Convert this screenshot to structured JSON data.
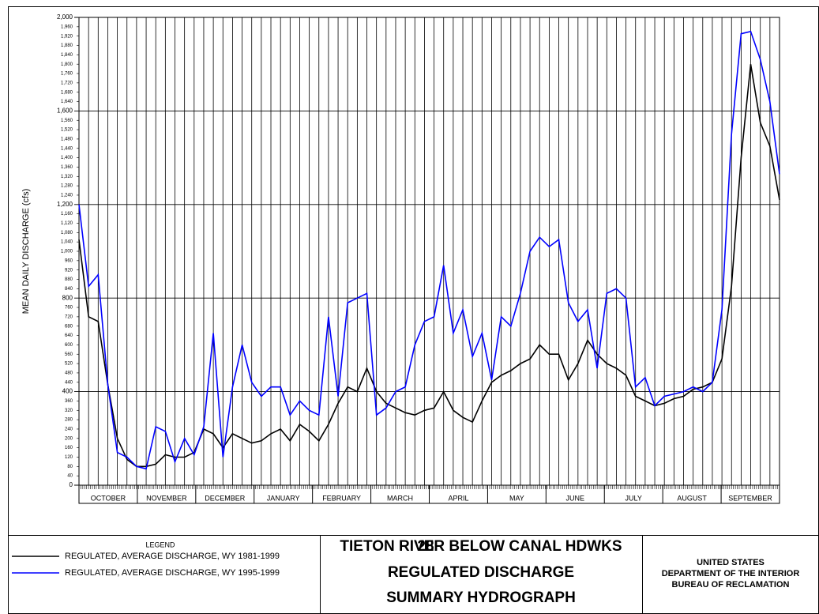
{
  "chart_data": {
    "type": "line",
    "title_lines": [
      "TIETON RIVER BELOW CANAL HDWKS",
      "REGULATED DISCHARGE",
      "SUMMARY HYDROGRAPH"
    ],
    "station_number": "28",
    "agency_lines": [
      "UNITED STATES",
      "DEPARTMENT OF THE INTERIOR",
      "BUREAU OF RECLAMATION"
    ],
    "legend_title": "LEGEND",
    "y_label": "MEAN DAILY DISCHARGE  (cfs)",
    "months": [
      "OCTOBER",
      "NOVEMBER",
      "DECEMBER",
      "JANUARY",
      "FEBRUARY",
      "MARCH",
      "APRIL",
      "MAY",
      "JUNE",
      "JULY",
      "AUGUST",
      "SEPTEMBER"
    ],
    "ylim": [
      0,
      2000
    ],
    "yticks": [
      0,
      40,
      80,
      120,
      160,
      200,
      240,
      280,
      320,
      360,
      400,
      440,
      480,
      520,
      560,
      600,
      640,
      680,
      720,
      760,
      800,
      840,
      880,
      920,
      960,
      {
        "value": 1000,
        "label": "1,000"
      },
      {
        "value": 1040,
        "label": "1,040"
      },
      {
        "value": 1080,
        "label": "1,080"
      },
      {
        "value": 1120,
        "label": "1,120"
      },
      {
        "value": 1160,
        "label": "1,160"
      },
      {
        "value": 1200,
        "label": "1,200"
      },
      {
        "value": 1240,
        "label": "1,240"
      },
      {
        "value": 1280,
        "label": "1,280"
      },
      {
        "value": 1320,
        "label": "1,320"
      },
      {
        "value": 1360,
        "label": "1,360"
      },
      {
        "value": 1400,
        "label": "1,400"
      },
      {
        "value": 1440,
        "label": "1,440"
      },
      {
        "value": 1480,
        "label": "1,480"
      },
      {
        "value": 1520,
        "label": "1,520"
      },
      {
        "value": 1560,
        "label": "1,560"
      },
      {
        "value": 1600,
        "label": "1,600"
      },
      {
        "value": 1640,
        "label": "1,640"
      },
      {
        "value": 1680,
        "label": "1,680"
      },
      {
        "value": 1720,
        "label": "1,720"
      },
      {
        "value": 1760,
        "label": "1,760"
      },
      {
        "value": 1800,
        "label": "1,800"
      },
      {
        "value": 1840,
        "label": "1,840"
      },
      {
        "value": 1880,
        "label": "1,880"
      },
      {
        "value": 1920,
        "label": "1,920"
      },
      {
        "value": 1960,
        "label": "1,960"
      },
      {
        "value": 2000,
        "label": "2,000"
      }
    ],
    "series": [
      {
        "name": "REGULATED, AVERAGE DISCHARGE, WY 1981-1999",
        "color": "#000000",
        "values": [
          1050,
          720,
          700,
          430,
          200,
          110,
          80,
          80,
          90,
          130,
          120,
          120,
          140,
          240,
          220,
          160,
          220,
          200,
          180,
          190,
          220,
          240,
          190,
          260,
          230,
          190,
          260,
          350,
          420,
          400,
          500,
          400,
          350,
          330,
          310,
          300,
          320,
          330,
          400,
          320,
          290,
          270,
          360,
          440,
          470,
          490,
          520,
          540,
          600,
          560,
          560,
          450,
          520,
          620,
          560,
          520,
          500,
          470,
          380,
          360,
          340,
          350,
          370,
          380,
          410,
          420,
          440,
          540,
          850,
          1400,
          1800,
          1550,
          1450,
          1220
        ]
      },
      {
        "name": "REGULATED, AVERAGE DISCHARGE, WY 1995-1999",
        "color": "#0000ff",
        "values": [
          1200,
          850,
          900,
          430,
          140,
          120,
          80,
          70,
          250,
          230,
          100,
          200,
          130,
          250,
          650,
          120,
          420,
          600,
          440,
          380,
          420,
          420,
          300,
          360,
          320,
          300,
          720,
          380,
          780,
          800,
          820,
          300,
          330,
          400,
          420,
          600,
          700,
          720,
          940,
          650,
          750,
          550,
          650,
          450,
          720,
          680,
          820,
          1000,
          1060,
          1020,
          1050,
          780,
          700,
          750,
          500,
          820,
          840,
          800,
          420,
          460,
          340,
          380,
          390,
          400,
          420,
          400,
          440,
          750,
          1500,
          1930,
          1940,
          1820,
          1640,
          1330
        ]
      }
    ]
  }
}
